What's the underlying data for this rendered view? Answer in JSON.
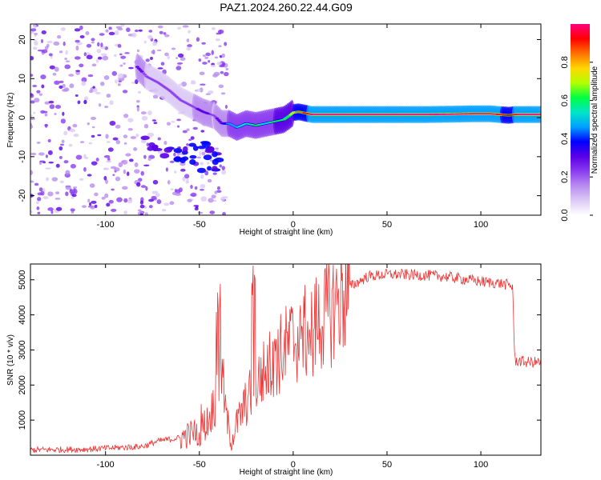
{
  "title": "PAZ1.2024.260.22.44.G09",
  "colors": {
    "snr_line": "#ee3333",
    "cmap": [
      "#ffffff",
      "#dccbf5",
      "#b98cf0",
      "#8a3cf0",
      "#5a00e6",
      "#0000ff",
      "#00a0ff",
      "#00e6c8",
      "#00ff40",
      "#b4ff00",
      "#ffd700",
      "#ff7000",
      "#ff0000",
      "#ff0080"
    ]
  },
  "chart_data": [
    {
      "type": "heatmap",
      "title": "PAZ1.2024.260.22.44.G09",
      "xlabel": "Height of straight line (km)",
      "ylabel": "Frequency (Hz)",
      "xlim": [
        -140,
        132
      ],
      "ylim": [
        -25,
        24
      ],
      "xticks": [
        -100,
        -50,
        0,
        50,
        100
      ],
      "yticks": [
        20,
        10,
        0,
        -10,
        -20
      ],
      "colorbar": {
        "label": "Normalized spectral amplitude",
        "range": [
          0,
          1
        ],
        "ticks": [
          "0.0",
          "0.2",
          "0.4",
          "0.6",
          "0.8"
        ],
        "tick_values": [
          0.0,
          0.2,
          0.4,
          0.6,
          0.8
        ]
      },
      "ridge": {
        "x": [
          -83,
          -78,
          -72,
          -66,
          -60,
          -54,
          -48,
          -42,
          -38,
          -34,
          -30,
          -25,
          -20,
          -15,
          -10,
          -5,
          -2,
          0,
          3,
          6,
          10,
          20,
          30,
          50,
          70,
          85,
          95,
          105,
          110,
          115,
          118,
          125,
          132
        ],
        "y": [
          13,
          10.5,
          9,
          7,
          4.5,
          3,
          1.5,
          0.5,
          -1.5,
          -1.5,
          -2.5,
          -1.5,
          -2,
          -1.5,
          -1,
          -0.5,
          0.5,
          1.3,
          1.5,
          1.2,
          0.8,
          0.8,
          0.8,
          0.8,
          0.8,
          0.9,
          1,
          1,
          0.8,
          0.6,
          0.8,
          0.8,
          0.8
        ],
        "amp": [
          0.3,
          0.25,
          0.2,
          0.2,
          0.2,
          0.25,
          0.3,
          0.25,
          0.35,
          0.45,
          0.5,
          0.55,
          0.6,
          0.55,
          0.6,
          0.6,
          0.65,
          0.75,
          0.85,
          0.9,
          1,
          1,
          1,
          1,
          1,
          1,
          1,
          1,
          0.95,
          0.9,
          0.95,
          1,
          1
        ]
      },
      "scatter_region": {
        "x_range": [
          -140,
          -35
        ],
        "y_range": [
          -25,
          24
        ],
        "amp_range": [
          0.05,
          0.3
        ]
      },
      "lower_branch": {
        "x": [
          -75,
          -65,
          -55,
          -50,
          -45,
          -42
        ],
        "y": [
          -7,
          -9,
          -10,
          -8,
          -12,
          -10
        ],
        "amp": [
          0.25,
          0.3,
          0.3,
          0.35,
          0.3,
          0.3
        ]
      }
    },
    {
      "type": "line",
      "xlabel": "Height of straight line (km)",
      "ylabel": "SNR (10 * v/v)",
      "xlim": [
        -140,
        132
      ],
      "ylim": [
        0,
        5450
      ],
      "xticks": [
        -100,
        -50,
        0,
        50,
        100
      ],
      "yticks": [
        1000,
        2000,
        3000,
        4000,
        5000
      ],
      "series": [
        {
          "x": [
            -140,
            -110,
            -80,
            -72,
            -60,
            -50,
            -45,
            -40,
            -38,
            -36,
            -33,
            -30,
            -25,
            -20,
            -15,
            -10,
            -5,
            0,
            5,
            10,
            15,
            20,
            25,
            30,
            40,
            50,
            60,
            80,
            100,
            110,
            115,
            117,
            118,
            125,
            132
          ],
          "y": [
            150,
            170,
            250,
            400,
            500,
            700,
            1000,
            1800,
            2500,
            1200,
            400,
            900,
            1500,
            2000,
            2400,
            2700,
            3000,
            3300,
            3400,
            3600,
            3900,
            4100,
            4500,
            4800,
            5100,
            5150,
            5150,
            5100,
            4950,
            4900,
            4850,
            4800,
            2700,
            2650,
            2650
          ],
          "spikes": [
            {
              "x": -50,
              "y": 1600
            },
            {
              "x": -40,
              "y": 4900
            },
            {
              "x": -21,
              "y": 5450
            },
            {
              "x": -10,
              "y": 3700
            },
            {
              "x": 5,
              "y": 4000
            },
            {
              "x": 10,
              "y": 4200
            }
          ]
        }
      ]
    }
  ]
}
